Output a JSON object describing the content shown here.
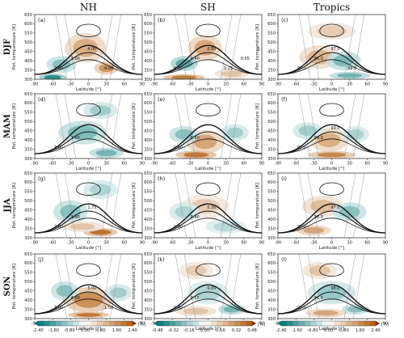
{
  "chart_data": {
    "type": "heatmap",
    "column_titles": [
      "NH",
      "SH",
      "Tropics"
    ],
    "row_labels": [
      "DJF",
      "MAM",
      "JJA",
      "SON"
    ],
    "panel_letters": [
      "(a)",
      "(b)",
      "(c)",
      "(d)",
      "(e)",
      "(f)",
      "(g)",
      "(h)",
      "(i)",
      "(j)",
      "(k)",
      "(l)"
    ],
    "xlabel": "Latitude [°]",
    "ylabel": "Pot. temperature [K]",
    "xlim": [
      -90,
      90
    ],
    "ylim": [
      300,
      650
    ],
    "xticks": [
      -90,
      -60,
      -30,
      0,
      30,
      60,
      90
    ],
    "yticks": [
      300,
      350,
      400,
      450,
      500,
      550,
      600,
      650
    ],
    "colorbars": [
      {
        "ticks": [
          "-2.40",
          "-1.60",
          "-0.80",
          "0.00",
          "0.80",
          "1.60",
          "2.40"
        ],
        "unit": "[%]"
      },
      {
        "ticks": [
          "-0.48",
          "-0.32",
          "-0.16",
          "0.00",
          "0.16",
          "0.32",
          "0.48"
        ],
        "unit": "[%]"
      },
      {
        "ticks": [
          "-2.40",
          "-1.60",
          "-0.80",
          "0.00",
          "0.80",
          "1.60",
          "2.40"
        ],
        "unit": "[%]"
      }
    ],
    "colormap": {
      "negative": "#0f7d7d",
      "zero": "#ffffff",
      "positive": "#b8661b",
      "extreme": "#7a1a0a"
    },
    "panel_fields": [
      {
        "anom": [
          [
            -45,
            380,
            22,
            40,
            -0.5
          ],
          [
            -5,
            470,
            30,
            70,
            0.55
          ],
          [
            30,
            360,
            18,
            30,
            0.7
          ],
          [
            -60,
            310,
            20,
            18,
            -0.9
          ]
        ],
        "contour_labels": [
          "2.00",
          "3.00",
          "4.00",
          "4.00"
        ]
      },
      {
        "anom": [
          [
            -5,
            470,
            25,
            60,
            0.6
          ],
          [
            -40,
            385,
            20,
            35,
            -0.7
          ],
          [
            -40,
            310,
            30,
            15,
            0.9
          ],
          [
            40,
            330,
            25,
            25,
            0.4
          ]
        ],
        "contour_labels": [
          "0.80",
          "0.40",
          "0.55",
          "0.25",
          "0.05",
          "0.15"
        ]
      },
      {
        "anom": [
          [
            -20,
            420,
            30,
            55,
            0.5
          ],
          [
            20,
            400,
            25,
            45,
            -0.55
          ],
          [
            30,
            320,
            30,
            18,
            -0.6
          ],
          [
            0,
            560,
            35,
            40,
            0.35
          ]
        ],
        "contour_labels": [
          "97.0",
          "96.0",
          "97.0",
          "99.0"
        ]
      },
      {
        "anom": [
          [
            -10,
            440,
            35,
            55,
            -0.55
          ],
          [
            20,
            560,
            25,
            40,
            -0.4
          ],
          [
            30,
            330,
            25,
            25,
            -0.6
          ]
        ],
        "contour_labels": [
          "3.00",
          "2.00"
        ]
      },
      {
        "anom": [
          [
            -5,
            390,
            28,
            55,
            0.6
          ],
          [
            -40,
            430,
            22,
            40,
            -0.5
          ],
          [
            45,
            440,
            20,
            40,
            -0.4
          ],
          [
            -20,
            320,
            30,
            20,
            0.9
          ]
        ],
        "contour_labels": [
          "0.60",
          "0.80"
        ]
      },
      {
        "anom": [
          [
            -5,
            400,
            28,
            55,
            0.55
          ],
          [
            -40,
            450,
            22,
            40,
            -0.4
          ],
          [
            40,
            430,
            20,
            40,
            -0.35
          ],
          [
            0,
            320,
            35,
            18,
            0.8
          ]
        ],
        "contour_labels": [
          "97.0",
          "98.0",
          "99.0"
        ]
      },
      {
        "anom": [
          [
            -30,
            440,
            25,
            55,
            -0.5
          ],
          [
            20,
            560,
            25,
            45,
            -0.35
          ],
          [
            20,
            330,
            25,
            20,
            0.95
          ],
          [
            -10,
            360,
            30,
            25,
            0.4
          ]
        ],
        "contour_labels": [
          "2.00",
          "3.00",
          "1.75"
        ]
      },
      {
        "anom": [
          [
            -5,
            470,
            35,
            55,
            0.35
          ],
          [
            -40,
            440,
            22,
            45,
            -0.35
          ],
          [
            30,
            360,
            30,
            35,
            -0.3
          ]
        ],
        "contour_labels": [
          "0.60",
          "0.80",
          "0.30"
        ]
      },
      {
        "anom": [
          [
            -15,
            470,
            30,
            50,
            0.45
          ],
          [
            30,
            440,
            25,
            45,
            -0.5
          ],
          [
            -30,
            340,
            25,
            25,
            0.6
          ]
        ],
        "contour_labels": [
          "97.0",
          "98.0",
          "97.0"
        ]
      },
      {
        "anom": [
          [
            0,
            400,
            35,
            60,
            0.75
          ],
          [
            -40,
            450,
            20,
            45,
            -0.5
          ],
          [
            50,
            440,
            20,
            40,
            -0.4
          ],
          [
            0,
            320,
            30,
            15,
            0.9
          ]
        ],
        "contour_labels": [
          "3.00",
          "4.00",
          "5.00",
          "1.50"
        ]
      },
      {
        "anom": [
          [
            0,
            440,
            30,
            55,
            -0.35
          ],
          [
            -20,
            560,
            25,
            40,
            0.35
          ],
          [
            -20,
            340,
            30,
            25,
            0.4
          ],
          [
            40,
            350,
            20,
            25,
            -0.6
          ]
        ],
        "contour_labels": [
          "0.40",
          "0.55",
          "0.05"
        ]
      },
      {
        "anom": [
          [
            0,
            440,
            35,
            55,
            -0.45
          ],
          [
            -20,
            560,
            25,
            40,
            0.4
          ],
          [
            -10,
            330,
            30,
            20,
            0.6
          ],
          [
            40,
            350,
            20,
            25,
            -0.5
          ]
        ],
        "contour_labels": [
          "97.0",
          "96.0",
          "98.0"
        ]
      }
    ]
  }
}
